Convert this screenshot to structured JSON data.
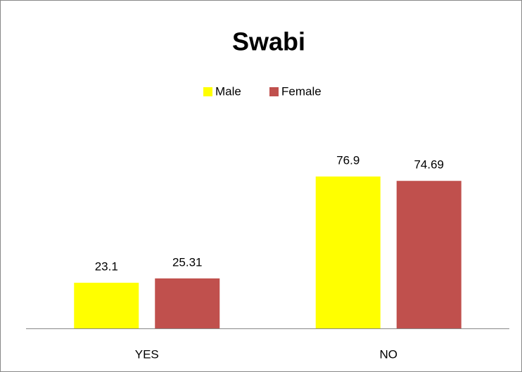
{
  "chart_data": {
    "type": "bar",
    "title": "Swabi",
    "categories": [
      "YES",
      "NO"
    ],
    "series": [
      {
        "name": "Male",
        "color": "#ffff00",
        "values": [
          23.1,
          76.9
        ]
      },
      {
        "name": "Female",
        "color": "#c0504d",
        "values": [
          25.31,
          74.69
        ]
      }
    ],
    "legend": "top"
  }
}
